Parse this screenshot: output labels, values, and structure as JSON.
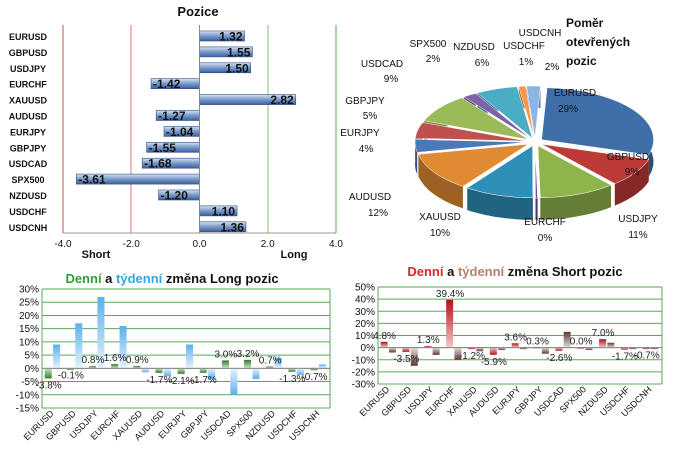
{
  "positions": {
    "title": "Pozice",
    "short_label": "Short",
    "long_label": "Long",
    "axis_ticks": [
      "-4.0",
      "-2.0",
      "0.0",
      "2.0",
      "4.0"
    ],
    "chart_data": {
      "type": "bar",
      "orientation": "horizontal",
      "categories": [
        "EURUSD",
        "GBPUSD",
        "USDJPY",
        "EURCHF",
        "XAUUSD",
        "AUDUSD",
        "EURJPY",
        "GBPJPY",
        "USDCAD",
        "SPX500",
        "NZDUSD",
        "USDCHF",
        "USDCNH"
      ],
      "values": [
        1.32,
        1.55,
        1.5,
        -1.42,
        2.82,
        -1.27,
        -1.04,
        -1.55,
        -1.68,
        -3.61,
        -1.2,
        1.1,
        1.36
      ],
      "labels": [
        "1.32",
        "1.55",
        "1.50",
        "-1.42",
        "2.82",
        "-1.27",
        "-1.04",
        "-1.55",
        "-1.68",
        "-3.61",
        "-1.20",
        "1.10",
        "1.36"
      ],
      "xlim": [
        -4.0,
        4.0
      ]
    }
  },
  "pie": {
    "title_lines": [
      "Poměr",
      "otevřených",
      "pozic"
    ],
    "chart_data": {
      "type": "pie",
      "slices": [
        {
          "name": "EURUSD",
          "pct": 29,
          "label": "29%",
          "color": "#3F6EA8"
        },
        {
          "name": "GBPUSD",
          "pct": 9,
          "label": "9%",
          "color": "#BD3B37"
        },
        {
          "name": "USDJPY",
          "pct": 11,
          "label": "11%",
          "color": "#8FB44B"
        },
        {
          "name": "EURCHF",
          "pct": 0,
          "label": "0%",
          "color": "#6C4C9C"
        },
        {
          "name": "XAUUSD",
          "pct": 10,
          "label": "10%",
          "color": "#2E8FB8"
        },
        {
          "name": "AUDUSD",
          "pct": 12,
          "label": "12%",
          "color": "#E08A32"
        },
        {
          "name": "EURJPY",
          "pct": 4,
          "label": "4%",
          "color": "#4B79B8"
        },
        {
          "name": "GBPJPY",
          "pct": 5,
          "label": "5%",
          "color": "#C0504D"
        },
        {
          "name": "USDCAD",
          "pct": 9,
          "label": "9%",
          "color": "#9BBB59"
        },
        {
          "name": "SPX500",
          "pct": 2,
          "label": "2%",
          "color": "#7E62A8"
        },
        {
          "name": "NZDUSD",
          "pct": 6,
          "label": "6%",
          "color": "#4BACC6"
        },
        {
          "name": "USDCHF",
          "pct": 1,
          "label": "1%",
          "color": "#F79646"
        },
        {
          "name": "USDCNH",
          "pct": 2,
          "label": "2%",
          "color": "#8EB4E3"
        }
      ]
    }
  },
  "long_chart": {
    "title_parts": [
      {
        "text": "Denní",
        "color": "#2E9E3C"
      },
      {
        "text": " a ",
        "color": "#111111"
      },
      {
        "text": "týdenní",
        "color": "#2FA8E0"
      },
      {
        "text": " změna Long pozic",
        "color": "#111111"
      }
    ],
    "chart_data": {
      "type": "bar",
      "categories": [
        "EURUSD",
        "GBPUSD",
        "USDJPY",
        "EURCHF",
        "XAUUSD",
        "AUDUSD",
        "EURJPY",
        "GBPJPY",
        "USDCAD",
        "SPX500",
        "NZDUSD",
        "USDCHF",
        "USDCNH"
      ],
      "series": [
        {
          "name": "Denní",
          "color": "#4E9A3F",
          "values": [
            -3.8,
            -0.1,
            0.8,
            1.6,
            0.9,
            -1.7,
            -2.1,
            -1.7,
            3.0,
            3.2,
            0.7,
            -1.3,
            -0.7
          ]
        },
        {
          "name": "Týdenní",
          "color": "#6DB8EC",
          "values": [
            9.0,
            17.0,
            27.0,
            16.0,
            -1.5,
            -3.0,
            9.0,
            -4.0,
            -10.0,
            -4.0,
            4.0,
            -2.5,
            1.5
          ]
        }
      ],
      "data_labels": [
        "-3.8%",
        "-0.1%",
        "0.8%",
        "1.6%",
        "0.9%",
        "-1.7%",
        "-2.1%",
        "-1.7%",
        "3.0%",
        "3.2%",
        "0.7%",
        "-1.3%",
        "-0.7%"
      ],
      "ylim": [
        -15,
        30
      ],
      "y_ticks": [
        "30%",
        "25%",
        "20%",
        "15%",
        "10%",
        "5%",
        "0%",
        "-5%",
        "-10%",
        "-15%"
      ]
    }
  },
  "short_chart": {
    "title_parts": [
      {
        "text": "Denní",
        "color": "#D9262A"
      },
      {
        "text": " a ",
        "color": "#111111"
      },
      {
        "text": "týdenní",
        "color": "#B8806A"
      },
      {
        "text": " změna Short pozic",
        "color": "#111111"
      }
    ],
    "chart_data": {
      "type": "bar",
      "categories": [
        "EURUSD",
        "GBPUSD",
        "USDJPY",
        "EURCHF",
        "XAUUSD",
        "AUDUSD",
        "EURJPY",
        "GBPJPY",
        "USDCAD",
        "SPX500",
        "NZDUSD",
        "USDCHF",
        "USDCNH"
      ],
      "series": [
        {
          "name": "Denní",
          "color": "#C0141A",
          "values": [
            4.8,
            -3.5,
            1.3,
            39.4,
            -1.2,
            -5.9,
            3.6,
            0.3,
            -2.6,
            0.0,
            7.0,
            -1.7,
            -0.7
          ]
        },
        {
          "name": "Týdenní",
          "color": "#8A7068",
          "values": [
            -4.0,
            -15.0,
            -6.0,
            -10.0,
            -3.0,
            -2.0,
            -1.0,
            -5.0,
            13.0,
            -2.0,
            4.0,
            -1.0,
            -0.5
          ]
        }
      ],
      "data_labels": [
        "4.8%",
        "-3.5%",
        "1.3%",
        "39.4%",
        "-1.2%",
        "-5.9%",
        "3.6%",
        "0.3%",
        "-2.6%",
        "0.0%",
        "7.0%",
        "-1.7%",
        "-0.7%"
      ],
      "ylim": [
        -30,
        50
      ],
      "y_ticks": [
        "50%",
        "40%",
        "30%",
        "20%",
        "10%",
        "0%",
        "-10%",
        "-20%",
        "-30%"
      ]
    }
  }
}
